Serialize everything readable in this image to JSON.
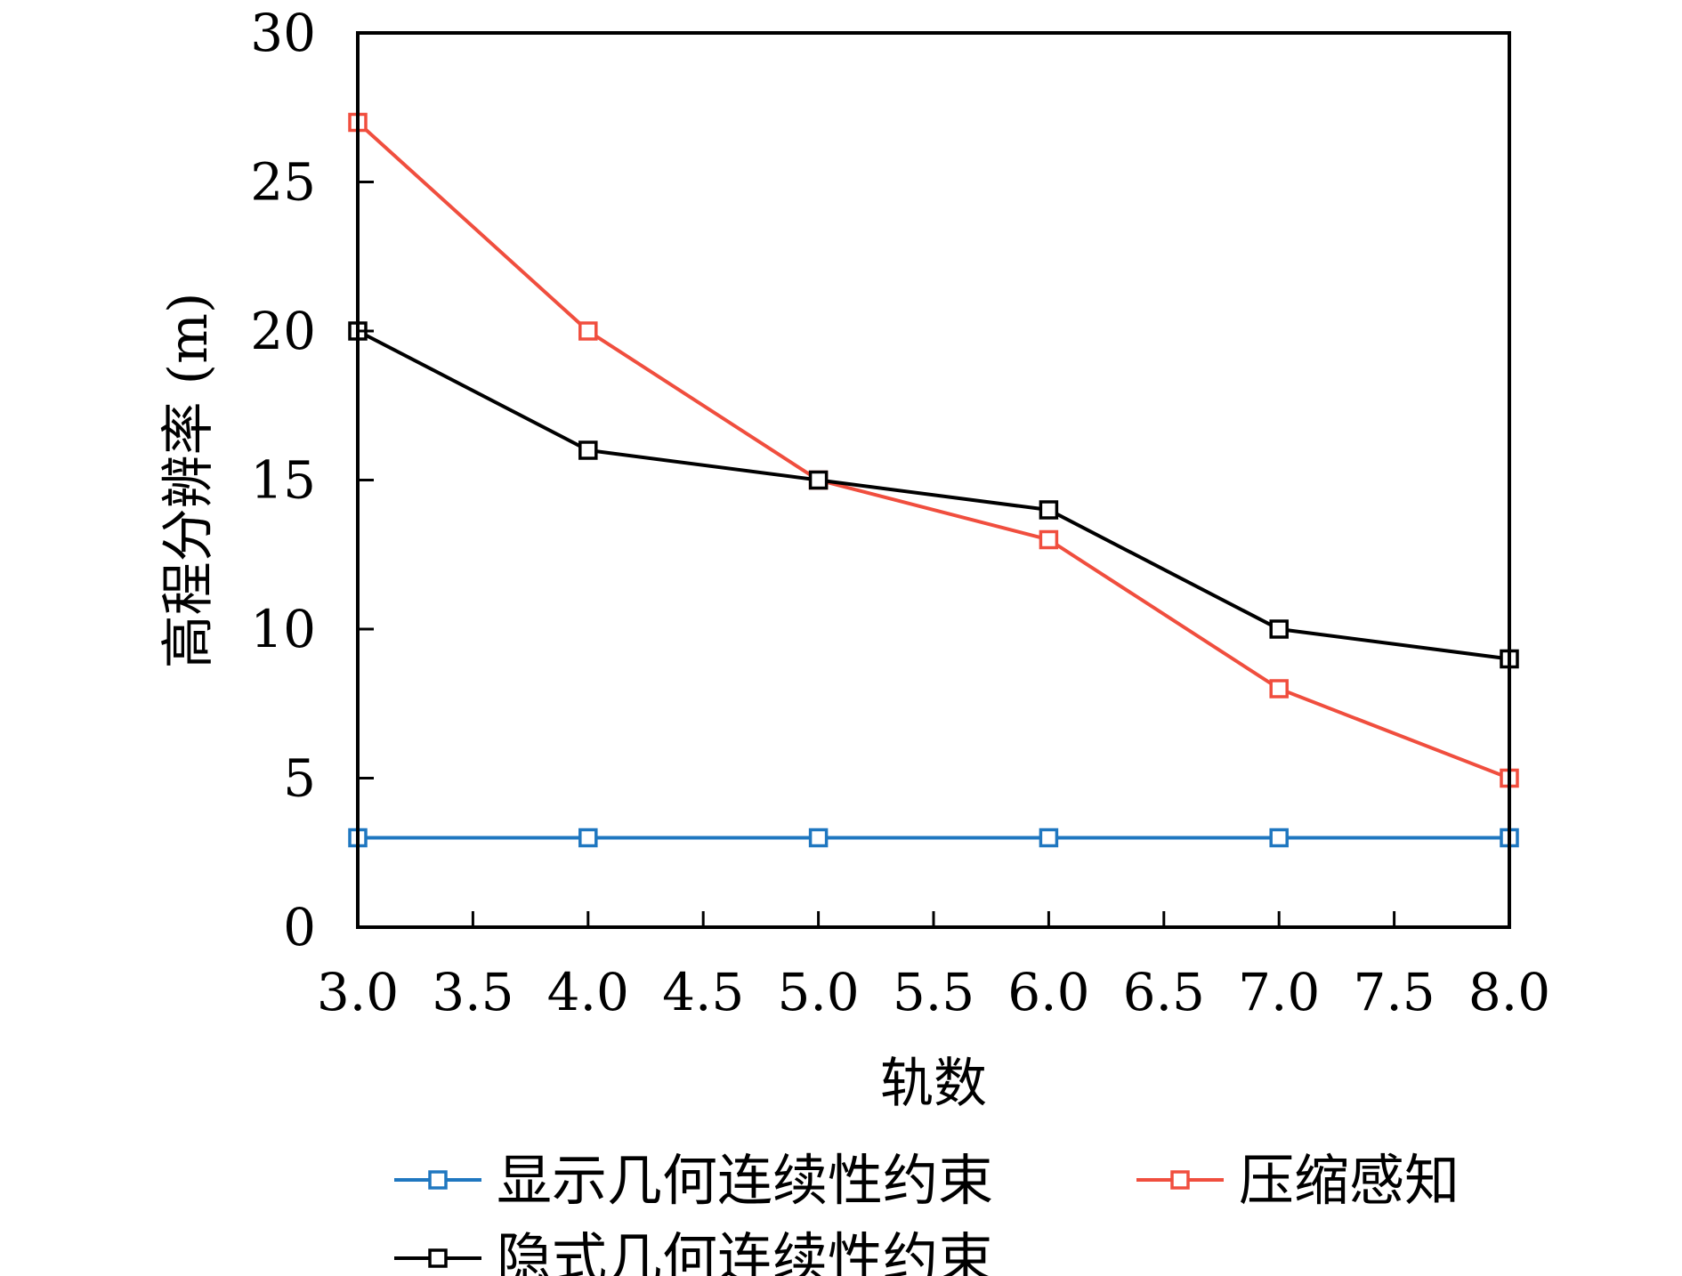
{
  "chart_data": {
    "type": "line",
    "xlabel": "轨数",
    "ylabel": "高程分辨率 (m)",
    "xlim": [
      3.0,
      8.0
    ],
    "ylim": [
      0,
      30
    ],
    "xticks": [
      "3.0",
      "3.5",
      "4.0",
      "4.5",
      "5.0",
      "5.5",
      "6.0",
      "6.5",
      "7.0",
      "7.5",
      "8.0"
    ],
    "yticks": [
      "0",
      "5",
      "10",
      "15",
      "20",
      "25",
      "30"
    ],
    "grid": false,
    "legend_position": "bottom",
    "x": [
      3,
      4,
      5,
      6,
      7,
      8
    ],
    "series": [
      {
        "name": "显示几何连续性约束",
        "color": "#1f77c0",
        "values": [
          3,
          3,
          3,
          3,
          3,
          3
        ]
      },
      {
        "name": "压缩感知",
        "color": "#f04e3e",
        "values": [
          27,
          20,
          15,
          13,
          8,
          5
        ]
      },
      {
        "name": "隐式几何连续性约束",
        "color": "#000000",
        "values": [
          20,
          16,
          15,
          14,
          10,
          9
        ]
      }
    ]
  }
}
